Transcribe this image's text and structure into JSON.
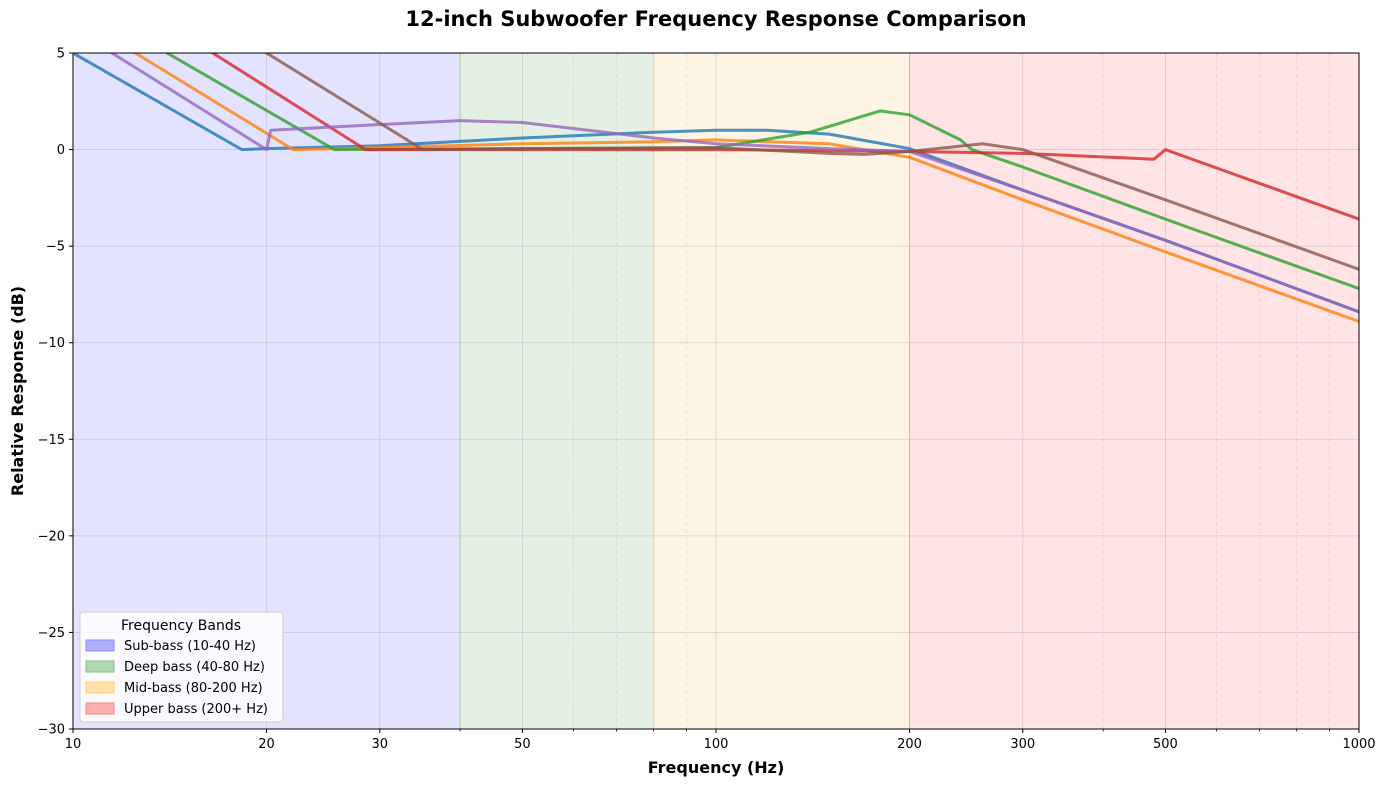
{
  "chart_data": {
    "type": "line",
    "title": "12-inch Subwoofer Frequency Response Comparison",
    "xlabel": "Frequency (Hz)",
    "ylabel": "Relative Response (dB)",
    "x_scale": "log",
    "xlim": [
      10,
      1000
    ],
    "ylim": [
      -30,
      5
    ],
    "x_ticks": [
      10,
      20,
      30,
      50,
      100,
      200,
      300,
      500,
      1000
    ],
    "x_tick_labels": [
      "10",
      "20",
      "30",
      "50",
      "100",
      "200",
      "300",
      "500",
      "1000"
    ],
    "y_ticks": [
      5,
      0,
      -5,
      -10,
      -15,
      -20,
      -25,
      -30
    ],
    "y_tick_labels": [
      "5",
      "0",
      "−5",
      "−10",
      "−15",
      "−20",
      "−25",
      "−30"
    ],
    "grid": true,
    "bands": [
      {
        "label": "Sub-bass (10-40 Hz)",
        "range": [
          10,
          40
        ],
        "fill": "#e3e3ff",
        "swatch": "#b0b0ff",
        "border": "#8a8aff"
      },
      {
        "label": "Deep bass (40-80 Hz)",
        "range": [
          40,
          80
        ],
        "fill": "#e5f0e5",
        "swatch": "#b0d8b0",
        "border": "#7fbf7f"
      },
      {
        "label": "Mid-bass (80-200 Hz)",
        "range": [
          80,
          200
        ],
        "fill": "#fef4e3",
        "swatch": "#ffe0a8",
        "border": "#ffcc70"
      },
      {
        "label": "Upper bass (200+ Hz)",
        "range": [
          200,
          1000
        ],
        "fill": "#ffe3e5",
        "swatch": "#ffb0b0",
        "border": "#ff8080"
      }
    ],
    "legend": {
      "title": "Frequency Bands",
      "placement": "lower-left"
    },
    "series": [
      {
        "color": "#1f77b4",
        "points": [
          [
            10,
            5
          ],
          [
            18.3,
            0
          ],
          [
            20,
            0.05
          ],
          [
            30,
            0.2
          ],
          [
            50,
            0.6
          ],
          [
            80,
            0.9
          ],
          [
            100,
            1.0
          ],
          [
            120,
            1.0
          ],
          [
            150,
            0.8
          ],
          [
            200,
            0.05
          ],
          [
            300,
            -2.1
          ],
          [
            500,
            -4.7
          ],
          [
            1000,
            -8.4
          ]
        ]
      },
      {
        "color": "#ff7f0e",
        "points": [
          [
            10,
            7.4
          ],
          [
            12.5,
            5
          ],
          [
            22,
            0
          ],
          [
            30,
            0.1
          ],
          [
            50,
            0.3
          ],
          [
            80,
            0.4
          ],
          [
            100,
            0.5
          ],
          [
            150,
            0.3
          ],
          [
            200,
            -0.4
          ],
          [
            300,
            -2.6
          ],
          [
            500,
            -5.3
          ],
          [
            1000,
            -8.9
          ]
        ]
      },
      {
        "color": "#2ca02c",
        "points": [
          [
            10,
            8.3
          ],
          [
            14,
            5
          ],
          [
            25.5,
            0
          ],
          [
            50,
            0.05
          ],
          [
            100,
            0.1
          ],
          [
            140,
            0.9
          ],
          [
            180,
            2.0
          ],
          [
            200,
            1.8
          ],
          [
            240,
            0.5
          ],
          [
            250,
            0
          ],
          [
            300,
            -0.9
          ],
          [
            500,
            -3.6
          ],
          [
            1000,
            -7.2
          ]
        ]
      },
      {
        "color": "#d62728",
        "points": [
          [
            10,
            10.3
          ],
          [
            16.5,
            5
          ],
          [
            28.5,
            0
          ],
          [
            50,
            0
          ],
          [
            100,
            0
          ],
          [
            200,
            -0.1
          ],
          [
            300,
            -0.2
          ],
          [
            480,
            -0.5
          ],
          [
            500,
            0
          ],
          [
            1000,
            -3.6
          ]
        ]
      },
      {
        "color": "#9467bd",
        "points": [
          [
            10,
            6.6
          ],
          [
            11.5,
            5
          ],
          [
            20,
            0
          ],
          [
            20.3,
            1.0
          ],
          [
            30,
            1.3
          ],
          [
            40,
            1.5
          ],
          [
            50,
            1.4
          ],
          [
            80,
            0.6
          ],
          [
            100,
            0.3
          ],
          [
            150,
            0.05
          ],
          [
            200,
            -0.1
          ],
          [
            300,
            -2.1
          ],
          [
            500,
            -4.7
          ],
          [
            1000,
            -8.4
          ]
        ]
      },
      {
        "color": "#8c564b",
        "points": [
          [
            10,
            12.9
          ],
          [
            20,
            5
          ],
          [
            35,
            0
          ],
          [
            50,
            0.05
          ],
          [
            100,
            0.1
          ],
          [
            150,
            -0.2
          ],
          [
            170,
            -0.25
          ],
          [
            200,
            -0.1
          ],
          [
            260,
            0.3
          ],
          [
            300,
            0
          ],
          [
            500,
            -2.6
          ],
          [
            1000,
            -6.2
          ]
        ]
      }
    ]
  }
}
